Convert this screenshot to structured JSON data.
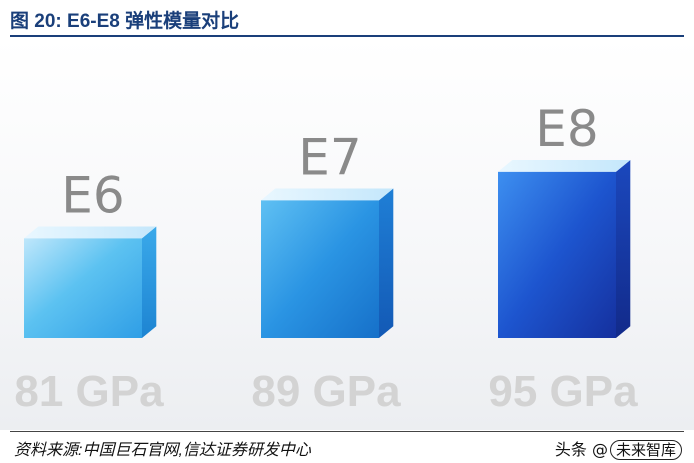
{
  "figure": {
    "title": "图 20:  E6-E8 弹性模量对比",
    "source": "资料来源:中国巨石官网,信达证券研发中心",
    "watermark_prefix": "头条 @",
    "watermark_name": "未来智库"
  },
  "colors": {
    "title": "#1a3f7a",
    "e6_front": "#55bff0",
    "e7_front": "#1f8fe0",
    "e8_front": "#1a46c4",
    "category_label": "#8a8a8a",
    "value_label": "#d3d3d3"
  },
  "chart_data": {
    "type": "bar",
    "categories": [
      "E6",
      "E7",
      "E8"
    ],
    "values": [
      81,
      89,
      95
    ],
    "value_labels": [
      "81 GPa",
      "89 GPa",
      "95 GPa"
    ],
    "unit": "GPa",
    "title": "",
    "xlabel": "",
    "ylabel": "",
    "grid": false,
    "legend": "none"
  }
}
